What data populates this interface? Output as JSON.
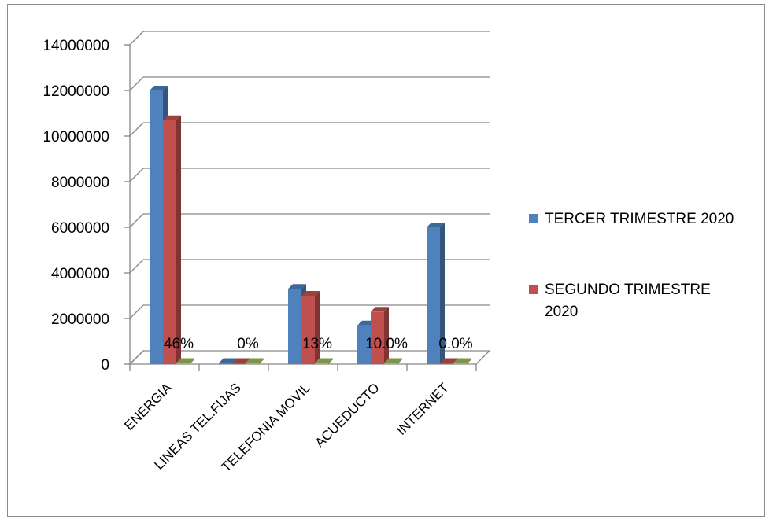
{
  "chart_data": {
    "type": "bar",
    "categories": [
      "ENERGIA",
      "LINEAS TEL.FIJAS",
      "TELEFONIA MOVIL",
      "ACUEDUCTO",
      "INTERNET"
    ],
    "series": [
      {
        "name": "TERCER TRIMESTRE 2020",
        "color": "#4f81bd",
        "values": [
          12000000,
          0,
          3300000,
          1700000,
          6000000
        ]
      },
      {
        "name": "SEGUNDO TRIMESTRE 2020",
        "color": "#c0504d",
        "values": [
          10700000,
          0,
          3000000,
          2300000,
          0
        ]
      },
      {
        "color": "#9bbb59",
        "values": [
          0,
          0,
          0,
          0,
          0
        ],
        "data_labels": [
          "46%",
          "0%",
          "13%",
          "10.0%",
          "0.0%"
        ]
      }
    ],
    "y_ticks": [
      "0",
      "2000000",
      "4000000",
      "6000000",
      "8000000",
      "10000000",
      "12000000",
      "14000000"
    ],
    "ylim": [
      0,
      14000000
    ],
    "grid": true,
    "style": "3d-clustered-column",
    "legend_position": "right",
    "legend": {
      "entries": [
        {
          "lines": [
            "TERCER TRIMESTRE 2020"
          ]
        },
        {
          "lines": [
            "SEGUNDO TRIMESTRE",
            "2020"
          ]
        }
      ]
    }
  }
}
